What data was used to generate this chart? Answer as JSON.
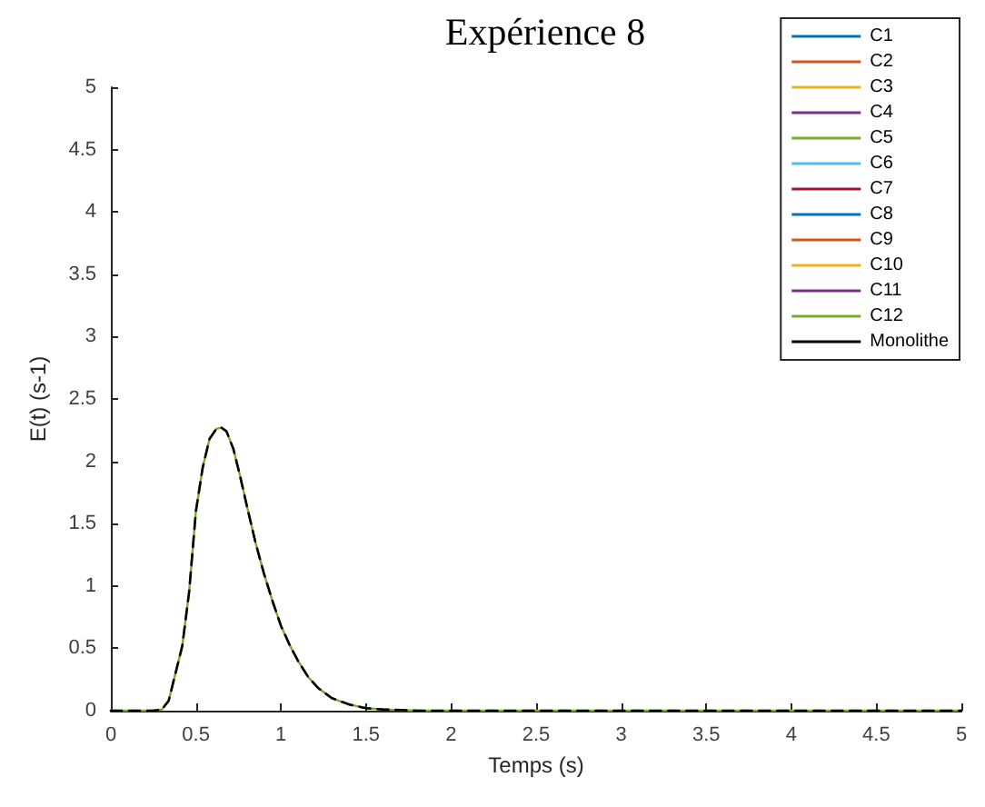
{
  "chart_data": {
    "type": "line",
    "title": "Expérience 8",
    "xlabel": "Temps (s)",
    "ylabel": "E(t) (s-1)",
    "x": [
      0,
      0.1,
      0.2,
      0.25,
      0.3,
      0.34,
      0.38,
      0.42,
      0.46,
      0.5,
      0.54,
      0.58,
      0.62,
      0.65,
      0.68,
      0.72,
      0.76,
      0.8,
      0.85,
      0.9,
      0.95,
      1.0,
      1.05,
      1.1,
      1.16,
      1.22,
      1.3,
      1.4,
      1.5,
      1.6,
      1.8,
      2,
      2.5,
      3,
      3.5,
      4,
      4.5,
      5
    ],
    "series": [
      {
        "name": "C1",
        "color": "#0072bd",
        "values": [
          null,
          null,
          null,
          null,
          null,
          null,
          null,
          null,
          null,
          null,
          null,
          null,
          null,
          null,
          null,
          null,
          null,
          null,
          null,
          null,
          null,
          null,
          null,
          null,
          null,
          null,
          null,
          null,
          null,
          null,
          null,
          null,
          null,
          null,
          null,
          null,
          null,
          null
        ]
      },
      {
        "name": "C2",
        "color": "#d95319",
        "values": [
          null,
          null,
          null,
          null,
          null,
          null,
          null,
          null,
          null,
          null,
          null,
          null,
          null,
          null,
          null,
          null,
          null,
          null,
          null,
          null,
          null,
          null,
          null,
          null,
          null,
          null,
          null,
          null,
          null,
          null,
          null,
          null,
          null,
          null,
          null,
          null,
          null,
          null
        ]
      },
      {
        "name": "C3",
        "color": "#edb120",
        "values": [
          null,
          null,
          null,
          null,
          null,
          null,
          null,
          null,
          null,
          null,
          null,
          null,
          null,
          null,
          null,
          null,
          null,
          null,
          null,
          null,
          null,
          null,
          null,
          null,
          null,
          null,
          null,
          null,
          null,
          null,
          null,
          null,
          null,
          null,
          null,
          null,
          null,
          null
        ]
      },
      {
        "name": "C4",
        "color": "#7e2f8e",
        "values": [
          null,
          null,
          null,
          null,
          null,
          null,
          null,
          null,
          null,
          null,
          null,
          null,
          null,
          null,
          null,
          null,
          null,
          null,
          null,
          null,
          null,
          null,
          null,
          null,
          null,
          null,
          null,
          null,
          null,
          null,
          null,
          null,
          null,
          null,
          null,
          null,
          null,
          null
        ]
      },
      {
        "name": "C5",
        "color": "#77ac30",
        "values": [
          null,
          null,
          null,
          null,
          null,
          null,
          null,
          null,
          null,
          null,
          null,
          null,
          null,
          null,
          null,
          null,
          null,
          null,
          null,
          null,
          null,
          null,
          null,
          null,
          null,
          null,
          null,
          null,
          null,
          null,
          null,
          null,
          null,
          null,
          null,
          null,
          null,
          null
        ]
      },
      {
        "name": "C6",
        "color": "#4dbeee",
        "values": [
          null,
          null,
          null,
          null,
          null,
          null,
          null,
          null,
          null,
          null,
          null,
          null,
          null,
          null,
          null,
          null,
          null,
          null,
          null,
          null,
          null,
          null,
          null,
          null,
          null,
          null,
          null,
          null,
          null,
          null,
          null,
          null,
          null,
          null,
          null,
          null,
          null,
          null
        ]
      },
      {
        "name": "C7",
        "color": "#a2142f",
        "values": [
          null,
          null,
          null,
          null,
          null,
          null,
          null,
          null,
          null,
          null,
          null,
          null,
          null,
          null,
          null,
          null,
          null,
          null,
          null,
          null,
          null,
          null,
          null,
          null,
          null,
          null,
          null,
          null,
          null,
          null,
          null,
          null,
          null,
          null,
          null,
          null,
          null,
          null
        ]
      },
      {
        "name": "C8",
        "color": "#0072bd",
        "values": [
          null,
          null,
          null,
          null,
          null,
          null,
          null,
          null,
          null,
          null,
          null,
          null,
          null,
          null,
          null,
          null,
          null,
          null,
          null,
          null,
          null,
          null,
          null,
          null,
          null,
          null,
          null,
          null,
          null,
          null,
          null,
          null,
          null,
          null,
          null,
          null,
          null,
          null
        ]
      },
      {
        "name": "C9",
        "color": "#d95319",
        "values": [
          null,
          null,
          null,
          null,
          null,
          null,
          null,
          null,
          null,
          null,
          null,
          null,
          null,
          null,
          null,
          null,
          null,
          null,
          null,
          null,
          null,
          null,
          null,
          null,
          null,
          null,
          null,
          null,
          null,
          null,
          null,
          null,
          null,
          null,
          null,
          null,
          null,
          null
        ]
      },
      {
        "name": "C10",
        "color": "#edb120",
        "values": [
          null,
          null,
          null,
          null,
          null,
          null,
          null,
          null,
          null,
          null,
          null,
          null,
          null,
          null,
          null,
          null,
          null,
          null,
          null,
          null,
          null,
          null,
          null,
          null,
          null,
          null,
          null,
          null,
          null,
          null,
          null,
          null,
          null,
          null,
          null,
          null,
          null,
          null
        ]
      },
      {
        "name": "C11",
        "color": "#7e2f8e",
        "values": [
          null,
          null,
          null,
          null,
          null,
          null,
          null,
          null,
          null,
          null,
          null,
          null,
          null,
          null,
          null,
          null,
          null,
          null,
          null,
          null,
          null,
          null,
          null,
          null,
          null,
          null,
          null,
          null,
          null,
          null,
          null,
          null,
          null,
          null,
          null,
          null,
          null,
          null
        ]
      },
      {
        "name": "C12",
        "color": "#77ac30",
        "values": [
          0,
          0,
          0,
          0,
          0.01,
          0.08,
          0.3,
          0.52,
          0.95,
          1.6,
          1.95,
          2.18,
          2.26,
          2.27,
          2.24,
          2.1,
          1.88,
          1.64,
          1.35,
          1.1,
          0.88,
          0.68,
          0.53,
          0.4,
          0.27,
          0.18,
          0.1,
          0.05,
          0.02,
          0.01,
          0,
          0,
          0,
          0,
          0,
          0,
          0,
          0
        ]
      },
      {
        "name": "Monolithe",
        "color": "#000000",
        "line_style": "dashed",
        "values": [
          0,
          0,
          0,
          0,
          0.01,
          0.08,
          0.3,
          0.52,
          0.95,
          1.6,
          1.95,
          2.18,
          2.26,
          2.27,
          2.24,
          2.1,
          1.88,
          1.64,
          1.35,
          1.1,
          0.88,
          0.68,
          0.53,
          0.4,
          0.27,
          0.18,
          0.1,
          0.05,
          0.02,
          0.01,
          0,
          0,
          0,
          0,
          0,
          0,
          0,
          0
        ]
      }
    ],
    "xlim": [
      0,
      5
    ],
    "xticks": [
      0,
      0.5,
      1,
      1.5,
      2,
      2.5,
      3,
      3.5,
      4,
      4.5,
      5
    ],
    "ylim": [
      0,
      5
    ],
    "yticks": [
      0,
      0.5,
      1,
      1.5,
      2,
      2.5,
      3,
      3.5,
      4,
      4.5,
      5
    ],
    "line_style": "solid",
    "grid": false,
    "legend": "top right",
    "marker": "none"
  }
}
